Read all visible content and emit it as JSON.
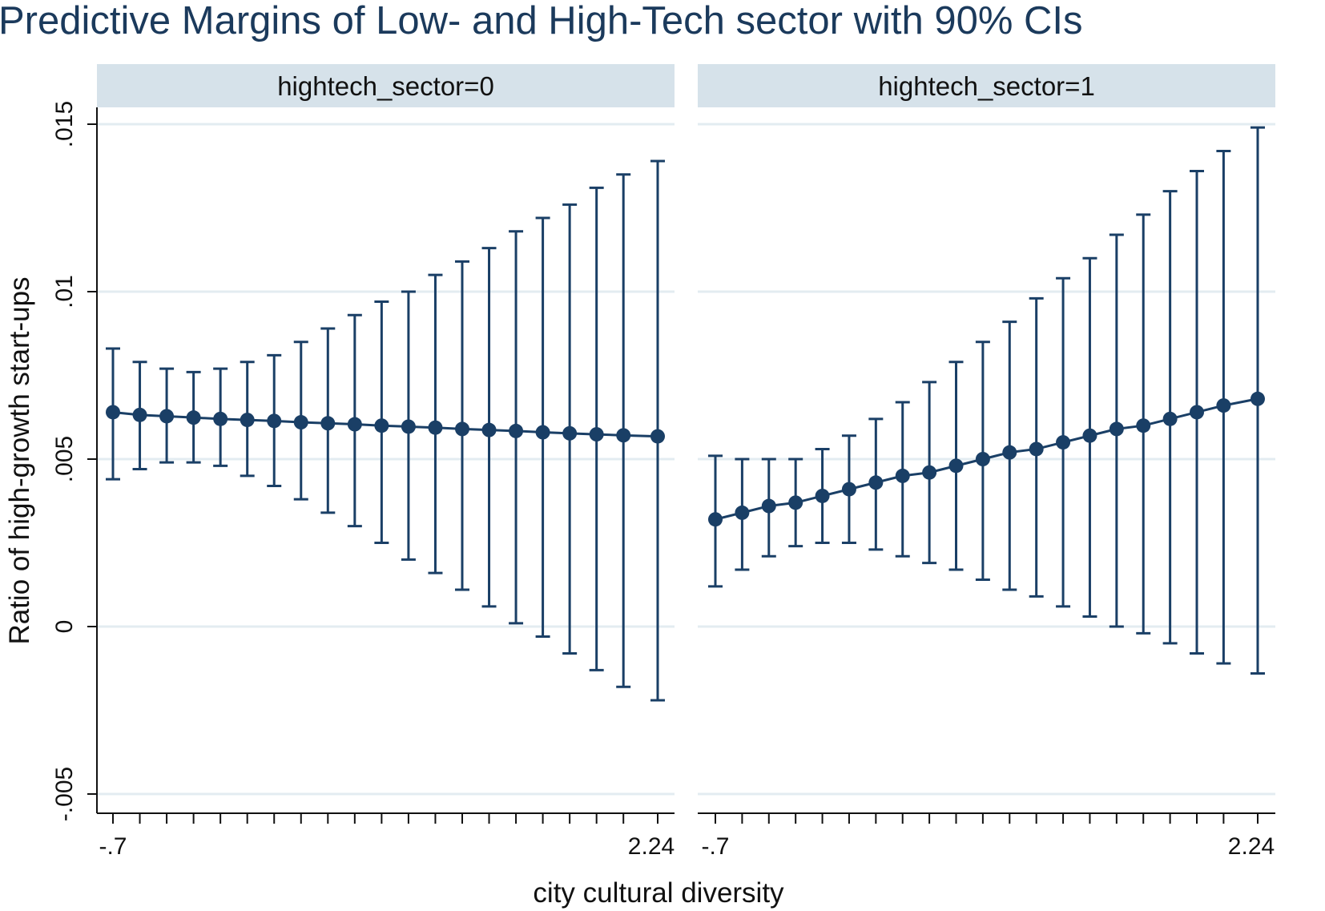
{
  "chart_data": {
    "type": "scatter",
    "title": "Predictive Margins of Low- and High-Tech sector with 90% CIs",
    "xlabel": "city cultural diversity",
    "ylabel": "Ratio of high-growth start-ups",
    "ylim": [
      -0.005,
      0.015
    ],
    "y_ticks": [
      {
        "value": -0.005,
        "label": "-.005"
      },
      {
        "value": 0,
        "label": "0"
      },
      {
        "value": 0.005,
        "label": ".005"
      },
      {
        "value": 0.01,
        "label": ".01"
      },
      {
        "value": 0.015,
        "label": ".015"
      }
    ],
    "x_tick_labels": [
      "-.7",
      "2.24"
    ],
    "x_values": [
      -0.7,
      -0.555,
      -0.41,
      -0.265,
      -0.12,
      0.025,
      0.17,
      0.315,
      0.46,
      0.605,
      0.75,
      0.895,
      1.04,
      1.185,
      1.33,
      1.475,
      1.62,
      1.765,
      1.91,
      2.055,
      2.24
    ],
    "panels": [
      {
        "label": "hightech_sector=0",
        "estimates": [
          0.0064,
          0.00632,
          0.00628,
          0.00624,
          0.0062,
          0.00617,
          0.00614,
          0.0061,
          0.00607,
          0.00604,
          0.006,
          0.00597,
          0.00594,
          0.0059,
          0.00587,
          0.00584,
          0.0058,
          0.00577,
          0.00574,
          0.00571,
          0.00568
        ],
        "ci_lower": [
          0.0044,
          0.0047,
          0.0049,
          0.0049,
          0.0048,
          0.0045,
          0.0042,
          0.0038,
          0.0034,
          0.003,
          0.0025,
          0.002,
          0.0016,
          0.0011,
          0.0006,
          0.0001,
          -0.0003,
          -0.0008,
          -0.0013,
          -0.0018,
          -0.0022
        ],
        "ci_upper": [
          0.0083,
          0.0079,
          0.0077,
          0.0076,
          0.0077,
          0.0079,
          0.0081,
          0.0085,
          0.0089,
          0.0093,
          0.0097,
          0.01,
          0.0105,
          0.0109,
          0.0113,
          0.0118,
          0.0122,
          0.0126,
          0.0131,
          0.0135,
          0.0139
        ]
      },
      {
        "label": "hightech_sector=1",
        "estimates": [
          0.0032,
          0.0034,
          0.0036,
          0.0037,
          0.0039,
          0.0041,
          0.0043,
          0.0045,
          0.0046,
          0.0048,
          0.005,
          0.0052,
          0.0053,
          0.0055,
          0.0057,
          0.0059,
          0.006,
          0.0062,
          0.0064,
          0.0066,
          0.0068
        ],
        "ci_lower": [
          0.0012,
          0.0017,
          0.0021,
          0.0024,
          0.0025,
          0.0025,
          0.0023,
          0.0021,
          0.0019,
          0.0017,
          0.0014,
          0.0011,
          0.0009,
          0.0006,
          0.0003,
          0.0,
          -0.0002,
          -0.0005,
          -0.0008,
          -0.0011,
          -0.0014
        ],
        "ci_upper": [
          0.0051,
          0.005,
          0.005,
          0.005,
          0.0053,
          0.0057,
          0.0062,
          0.0067,
          0.0073,
          0.0079,
          0.0085,
          0.0091,
          0.0098,
          0.0104,
          0.011,
          0.0117,
          0.0123,
          0.013,
          0.0136,
          0.0142,
          0.0149
        ]
      }
    ],
    "colors": {
      "series": "#1a3f66",
      "strip": "#d6e2ea",
      "grid": "#e3ecf1",
      "title": "#1b3a5c"
    }
  }
}
